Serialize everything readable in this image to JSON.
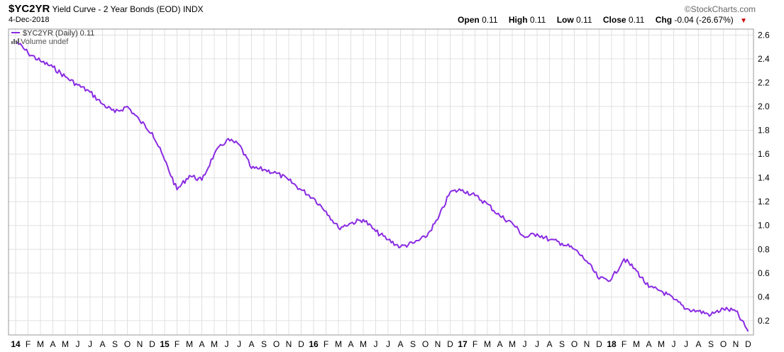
{
  "header": {
    "symbol": "$YC2YR",
    "description": "Yield Curve - 2 Year Bonds (EOD)",
    "exchange": "INDX",
    "date": "4-Dec-2018",
    "brand": "©StockCharts.com"
  },
  "ohlc": {
    "open_label": "Open",
    "open": "0.11",
    "high_label": "High",
    "high": "0.11",
    "low_label": "Low",
    "low": "0.11",
    "close_label": "Close",
    "close": "0.11",
    "chg_label": "Chg",
    "chg": "-0.04 (-26.67%)",
    "chg_arrow": "▼"
  },
  "legend": {
    "series_label": "$YC2YR (Daily) 0.11",
    "volume_label": "Volume undef"
  },
  "colors": {
    "line": "#8a2be2",
    "grid": "#e0e0e0",
    "down": "#cc0000"
  },
  "chart_data": {
    "type": "line",
    "title": "Yield Curve - 2 Year Bonds (EOD)",
    "ylim": [
      0.08,
      2.65
    ],
    "yticks": [
      0.2,
      0.4,
      0.6,
      0.8,
      1.0,
      1.2,
      1.4,
      1.6,
      1.8,
      2.0,
      2.2,
      2.4,
      2.6
    ],
    "ytick_labels": [
      "0.2",
      "0.4",
      "0.6",
      "0.8",
      "1.0",
      "1.2",
      "1.4",
      "1.6",
      "1.8",
      "2.0",
      "2.2",
      "2.4",
      "2.6"
    ],
    "x_ticks": [
      "14",
      "F",
      "M",
      "A",
      "M",
      "J",
      "J",
      "A",
      "S",
      "O",
      "N",
      "D",
      "15",
      "F",
      "M",
      "A",
      "M",
      "J",
      "J",
      "A",
      "S",
      "O",
      "N",
      "D",
      "16",
      "F",
      "M",
      "A",
      "M",
      "J",
      "J",
      "A",
      "S",
      "O",
      "N",
      "D",
      "17",
      "F",
      "M",
      "A",
      "M",
      "J",
      "J",
      "A",
      "S",
      "O",
      "N",
      "D",
      "18",
      "F",
      "M",
      "A",
      "M",
      "J",
      "J",
      "A",
      "S",
      "O",
      "N",
      "D"
    ],
    "x_bold": [
      "14",
      "15",
      "16",
      "17",
      "18"
    ],
    "grid": true,
    "series": [
      {
        "name": "$YC2YR",
        "x": [
          "2014-01",
          "2014-02",
          "2014-03",
          "2014-04",
          "2014-05",
          "2014-06",
          "2014-07",
          "2014-08",
          "2014-09",
          "2014-10",
          "2014-11",
          "2014-12",
          "2015-01",
          "2015-02",
          "2015-03",
          "2015-04",
          "2015-05",
          "2015-06",
          "2015-07",
          "2015-08",
          "2015-09",
          "2015-10",
          "2015-11",
          "2015-12",
          "2016-01",
          "2016-02",
          "2016-03",
          "2016-04",
          "2016-05",
          "2016-06",
          "2016-07",
          "2016-08",
          "2016-09",
          "2016-10",
          "2016-11",
          "2016-12",
          "2017-01",
          "2017-02",
          "2017-03",
          "2017-04",
          "2017-05",
          "2017-06",
          "2017-07",
          "2017-08",
          "2017-09",
          "2017-10",
          "2017-11",
          "2017-12",
          "2018-01",
          "2018-02",
          "2018-03",
          "2018-04",
          "2018-05",
          "2018-06",
          "2018-07",
          "2018-08",
          "2018-09",
          "2018-10",
          "2018-11",
          "2018-12"
        ],
        "values": [
          2.55,
          2.45,
          2.38,
          2.33,
          2.25,
          2.18,
          2.12,
          2.02,
          1.95,
          2.0,
          1.88,
          1.78,
          1.55,
          1.3,
          1.42,
          1.38,
          1.6,
          1.72,
          1.68,
          1.48,
          1.47,
          1.44,
          1.38,
          1.3,
          1.23,
          1.12,
          0.98,
          1.02,
          1.05,
          0.95,
          0.88,
          0.82,
          0.85,
          0.9,
          1.05,
          1.28,
          1.3,
          1.25,
          1.18,
          1.08,
          1.02,
          0.9,
          0.93,
          0.88,
          0.85,
          0.8,
          0.7,
          0.55,
          0.55,
          0.72,
          0.62,
          0.48,
          0.45,
          0.38,
          0.3,
          0.28,
          0.25,
          0.3,
          0.28,
          0.11
        ]
      }
    ]
  }
}
